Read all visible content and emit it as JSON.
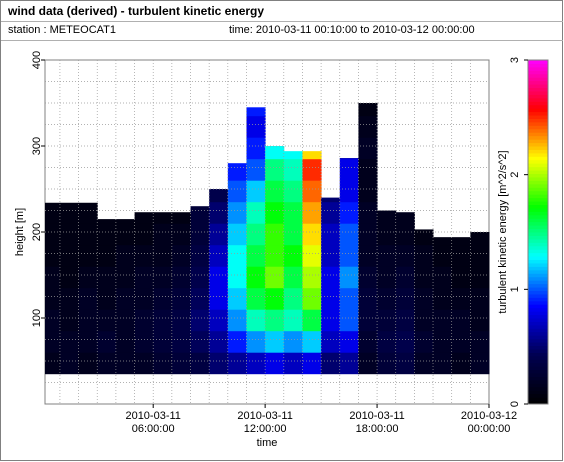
{
  "header": {
    "title": "wind data (derived) - turbulent kinetic energy",
    "station": "station : METEOCAT1",
    "period": "time: 2010-03-11 00:10:00 to 2010-03-12 00:00:00"
  },
  "chart_data": {
    "type": "heatmap",
    "xlabel": "time",
    "ylabel": "height [m]",
    "colorbar_label": "turbulent kinetic energy [m^2/s^2]",
    "xlim": [
      0.2,
      24
    ],
    "ylim": [
      0,
      400
    ],
    "clim": [
      0,
      3
    ],
    "xticks": [
      {
        "value": 6,
        "label": "2010-03-11 06:00:00"
      },
      {
        "value": 12,
        "label": "2010-03-11 12:00:00"
      },
      {
        "value": 18,
        "label": "2010-03-11 18:00:00"
      },
      {
        "value": 24,
        "label": "2010-03-12 00:00:00"
      }
    ],
    "yticks": [
      100,
      200,
      300,
      400
    ],
    "cticks": [
      0,
      1,
      2,
      3
    ],
    "minor_xticks": [
      1,
      2,
      3,
      4,
      5,
      6,
      7,
      8,
      9,
      10,
      11,
      12,
      13,
      14,
      15,
      16,
      17,
      18,
      19,
      20,
      21,
      22,
      23
    ],
    "minor_yticks": [
      25,
      50,
      75,
      100,
      125,
      150,
      175,
      200,
      225,
      250,
      275,
      300,
      325,
      350,
      375
    ],
    "grid": true,
    "colormap": [
      "#000000",
      "#000050",
      "#0000ff",
      "#00ffff",
      "#00ff00",
      "#ffff00",
      "#ff0000",
      "#ff00ff"
    ],
    "x_edges": [
      0.2,
      1,
      2,
      3,
      4,
      5,
      6,
      7,
      8,
      9,
      10,
      11,
      12,
      13,
      14,
      15,
      16,
      17,
      18,
      19,
      20,
      21,
      22,
      23,
      24
    ],
    "row_edges": [
      35,
      60,
      85,
      110,
      135,
      160,
      185,
      210,
      235,
      260,
      285,
      310,
      335,
      360
    ],
    "tops": [
      234,
      234,
      234,
      215,
      215,
      223,
      223,
      223,
      230,
      250,
      280,
      345,
      300,
      294,
      294,
      240,
      286,
      350,
      225,
      223,
      203,
      194,
      194,
      200
    ],
    "z": [
      [
        0.15,
        0.2,
        0.2,
        0.15,
        0.15,
        0.1,
        0.1,
        0.1
      ],
      [
        0.2,
        0.2,
        0.15,
        0.15,
        0.1,
        0.1,
        0.1,
        0.1
      ],
      [
        0.15,
        0.2,
        0.2,
        0.2,
        0.15,
        0.1,
        0.1,
        0.1
      ],
      [
        0.2,
        0.25,
        0.2,
        0.15,
        0.15,
        0.1,
        0.1,
        0.1
      ],
      [
        0.2,
        0.2,
        0.2,
        0.2,
        0.15,
        0.15,
        0.1,
        0.1
      ],
      [
        0.2,
        0.25,
        0.25,
        0.2,
        0.2,
        0.15,
        0.1,
        0.1
      ],
      [
        0.25,
        0.3,
        0.3,
        0.25,
        0.2,
        0.15,
        0.15,
        0.1
      ],
      [
        0.3,
        0.35,
        0.35,
        0.3,
        0.25,
        0.2,
        0.15,
        0.1
      ],
      [
        0.35,
        0.45,
        0.5,
        0.45,
        0.4,
        0.35,
        0.3,
        0.3
      ],
      [
        0.5,
        0.6,
        0.7,
        0.8,
        0.8,
        0.7,
        0.6,
        0.5,
        0.4
      ],
      [
        0.6,
        0.9,
        1.1,
        1.2,
        1.3,
        1.3,
        1.2,
        1.1,
        1.0,
        0.9
      ],
      [
        0.7,
        1.1,
        1.4,
        1.6,
        1.7,
        1.6,
        1.5,
        1.4,
        1.2,
        1.0,
        0.9,
        0.8,
        0.9
      ],
      [
        0.8,
        1.2,
        1.5,
        1.7,
        1.9,
        1.8,
        1.8,
        1.7,
        1.6,
        1.5,
        1.3
      ],
      [
        0.7,
        1.1,
        1.4,
        1.5,
        1.6,
        1.7,
        1.6,
        1.6,
        1.5,
        1.4,
        1.3
      ],
      [
        0.8,
        1.2,
        1.6,
        1.9,
        2.0,
        2.1,
        2.2,
        2.3,
        2.4,
        2.5,
        2.2
      ],
      [
        0.5,
        0.7,
        0.8,
        0.8,
        0.8,
        0.7,
        0.7,
        0.6,
        0.5
      ],
      [
        0.6,
        0.8,
        1.0,
        1.0,
        1.1,
        1.0,
        1.0,
        0.9,
        0.8,
        0.8,
        0.7
      ],
      [
        0.2,
        0.25,
        0.3,
        0.3,
        0.25,
        0.2,
        0.2,
        0.2,
        0.15,
        0.15,
        0.2,
        0.15,
        0.1
      ],
      [
        0.3,
        0.35,
        0.3,
        0.25,
        0.2,
        0.2,
        0.15,
        0.15
      ],
      [
        0.35,
        0.4,
        0.35,
        0.3,
        0.25,
        0.2,
        0.15,
        0.15
      ],
      [
        0.2,
        0.25,
        0.2,
        0.2,
        0.15,
        0.15,
        0.1
      ],
      [
        0.2,
        0.2,
        0.2,
        0.15,
        0.15,
        0.1,
        0.1
      ],
      [
        0.15,
        0.2,
        0.2,
        0.15,
        0.1,
        0.1,
        0.1
      ],
      [
        0.2,
        0.2,
        0.15,
        0.15,
        0.1,
        0.1,
        0.1
      ]
    ]
  }
}
